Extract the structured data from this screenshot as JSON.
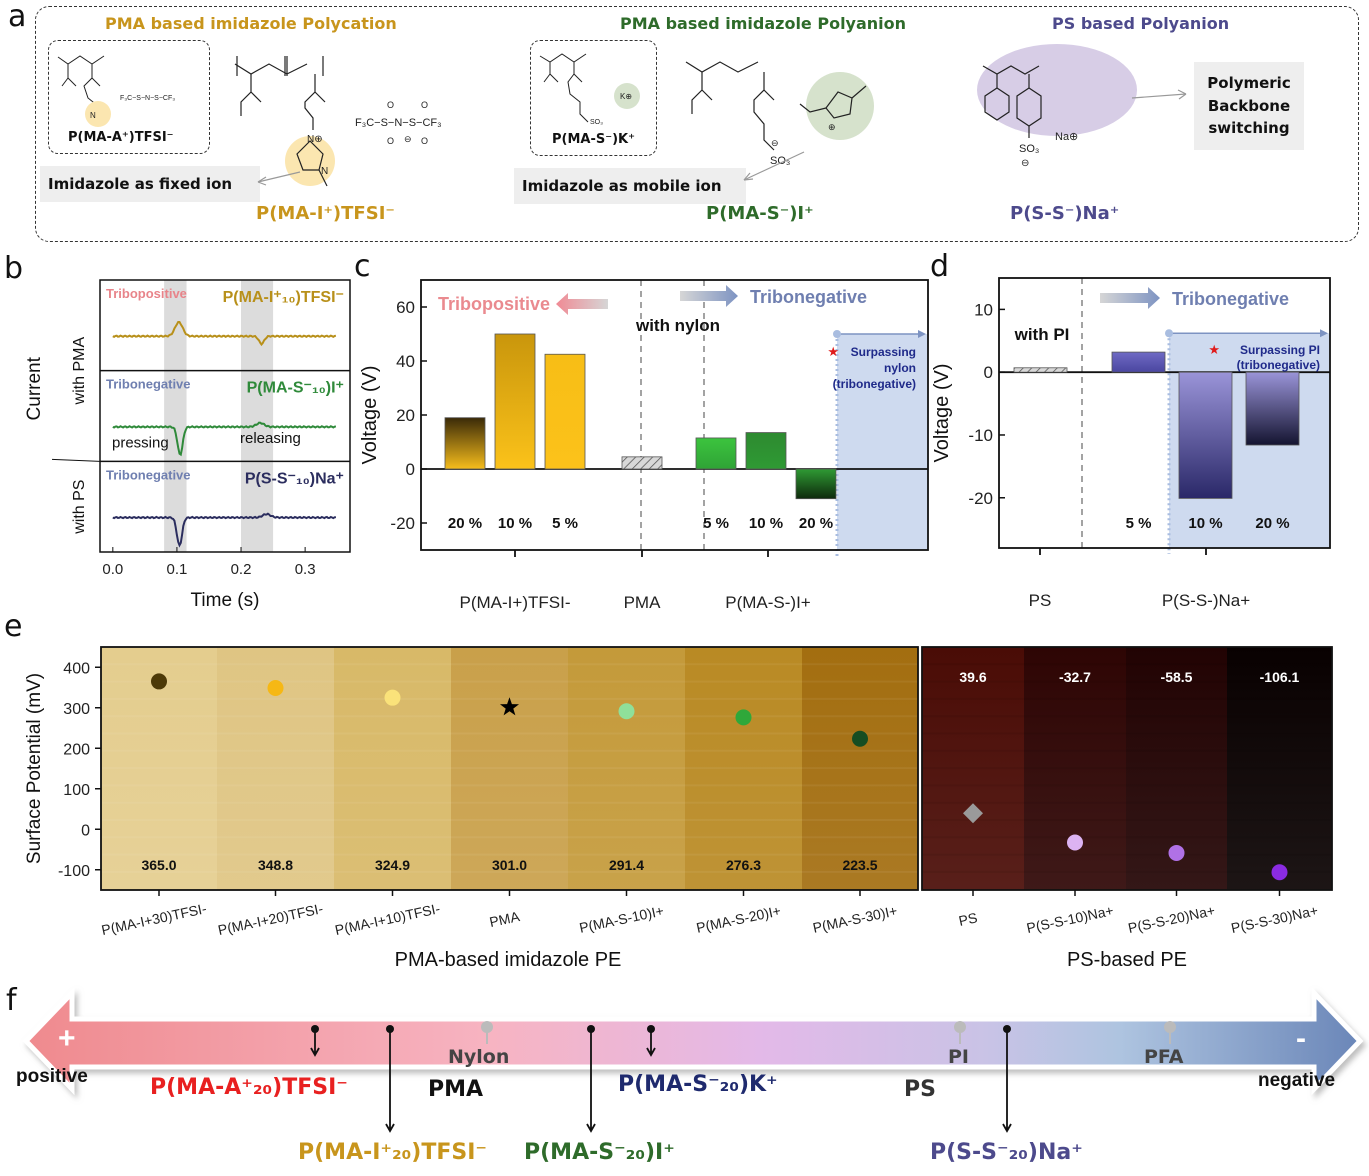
{
  "panel_a": {
    "letter": "a",
    "groups": [
      {
        "title": "PMA based imidazole Polycation",
        "color": "#c8951c",
        "inset_label": "P(MA-A⁺)TFSI⁻",
        "main_label": "P(MA-I⁺)TFSI⁻",
        "note": "Imidazole as fixed ion",
        "anion": "F₃C−S−N−S−CF₃"
      },
      {
        "title": "PMA based imidazole Polyanion",
        "color": "#2e6b2a",
        "inset_label": "P(MA-S⁻)K⁺",
        "main_label": "P(MA-S⁻)I⁺",
        "note": "Imidazole as mobile ion",
        "counter": "K⊕",
        "group": "SO₃"
      },
      {
        "title": "PS based Polyanion",
        "color": "#4d4a8c",
        "main_label": "P(S-S⁻)Na⁺",
        "note": "Polymeric Backbone switching",
        "counter": "Na⊕",
        "group": "SO₃"
      }
    ]
  },
  "chart_data": [
    {
      "id": "b",
      "type": "line",
      "title": "",
      "xlabel": "Time (s)",
      "ylabel": "Current",
      "xlim": [
        -0.02,
        0.37
      ],
      "xticks": [
        "0.0",
        "0.1",
        "0.2",
        "0.3"
      ],
      "shaded_regions": [
        [
          0.08,
          0.115
        ],
        [
          0.2,
          0.25
        ]
      ],
      "group_labels": [
        "with PMA",
        "with PS"
      ],
      "series": [
        {
          "name": "P(MA-I⁺₁₀)TFSI⁻",
          "tag": "Tribopositive",
          "tag_color": "#e8848a",
          "color": "#b8901a",
          "events": [
            {
              "t": 0.103,
              "amp": 1.0
            },
            {
              "t": 0.232,
              "amp": -0.55
            }
          ]
        },
        {
          "name": "P(MA-S⁻₁₀)I⁺",
          "tag": "Tribonegative",
          "tag_color": "#6f7fb0",
          "color": "#2f8a3a",
          "events": [
            {
              "t": 0.105,
              "amp": -1.0
            },
            {
              "t": 0.23,
              "amp": 0.4
            }
          ],
          "annotations": [
            "pressing",
            "releasing"
          ]
        },
        {
          "name": "P(S-S⁻₁₀)Na⁺",
          "tag": "Tribonegative",
          "tag_color": "#6f7fb0",
          "color": "#2b2d5e",
          "events": [
            {
              "t": 0.104,
              "amp": -1.0
            },
            {
              "t": 0.24,
              "amp": 0.35
            }
          ]
        }
      ]
    },
    {
      "id": "c",
      "type": "bar",
      "ylabel": "Voltage (V)",
      "ylim": [
        -30,
        70
      ],
      "yticks": [
        -20,
        0,
        20,
        40,
        60
      ],
      "center_label": "with nylon",
      "arrows": {
        "left": "Tribopositive",
        "right": "Tribonegative"
      },
      "highlight_note": [
        "Surpassing",
        "nylon",
        "(tribonegative)"
      ],
      "groups": [
        "P(MA-I+)TFSI-",
        "PMA",
        "P(MA-S-)I+"
      ],
      "bars": [
        {
          "group": "P(MA-I+)TFSI-",
          "label": "20 %",
          "value": 19,
          "color_top": "#3a2a08",
          "color_bottom": "#f6bd1c"
        },
        {
          "group": "P(MA-I+)TFSI-",
          "label": "10 %",
          "value": 50,
          "color_top": "#c9960c",
          "color_bottom": "#fbc21a"
        },
        {
          "group": "P(MA-I+)TFSI-",
          "label": "5 %",
          "value": 42.5,
          "color_top": "#f7be16",
          "color_bottom": "#fcc21a"
        },
        {
          "group": "PMA",
          "label": "",
          "value": 4.5,
          "hatched": true
        },
        {
          "group": "P(MA-S-)I+",
          "label": "5 %",
          "value": 11.5,
          "color_top": "#3cc43e",
          "color_bottom": "#2fa336"
        },
        {
          "group": "P(MA-S-)I+",
          "label": "10 %",
          "value": 13.5,
          "color_top": "#2d8a30",
          "color_bottom": "#2f9a34"
        },
        {
          "group": "P(MA-S-)I+",
          "label": "20 %",
          "value": -11,
          "color_top": "#2f9a34",
          "color_bottom": "#0e2a0c"
        }
      ]
    },
    {
      "id": "d",
      "type": "bar",
      "ylabel": "Voltage (V)",
      "ylim": [
        -28,
        15
      ],
      "yticks": [
        -20,
        -10,
        0,
        10
      ],
      "center_label": "with PI",
      "arrows": {
        "right": "Tribonegative"
      },
      "highlight_note": [
        "Surpassing PI",
        "(tribonegative)"
      ],
      "groups": [
        "PS",
        "P(S-S-)Na+"
      ],
      "bars": [
        {
          "group": "PS",
          "label": "",
          "value": 0.7,
          "hatched": true
        },
        {
          "group": "P(S-S-)Na+",
          "label": "5 %",
          "value": 3.2,
          "color_top": "#6f6ac4",
          "color_bottom": "#4a46a0"
        },
        {
          "group": "P(S-S-)Na+",
          "label": "10 %",
          "value": -20.1,
          "color_top": "#9a94d8",
          "color_bottom": "#2a2868"
        },
        {
          "group": "P(S-S-)Na+",
          "label": "20 %",
          "value": -11.6,
          "color_top": "#9a94d8",
          "color_bottom": "#141430"
        }
      ]
    },
    {
      "id": "e",
      "type": "scatter",
      "ylabel": "Surface Potential (mV)",
      "ylim": [
        -150,
        450
      ],
      "yticks": [
        -100,
        0,
        100,
        200,
        300,
        400
      ],
      "group_labels": [
        "PMA-based imidazole PE",
        "PS-based PE"
      ],
      "points": [
        {
          "category": "P(MA-I+30)TFSI-",
          "value": 365.0,
          "label": "365.0",
          "marker": "circle",
          "color": "#4d3a08",
          "bg": "#e4cd8e"
        },
        {
          "category": "P(MA-I+20)TFSI-",
          "value": 348.8,
          "label": "348.8",
          "marker": "circle",
          "color": "#f6b814",
          "bg": "#dfc583"
        },
        {
          "category": "P(MA-I+10)TFSI-",
          "value": 324.9,
          "label": "324.9",
          "marker": "circle",
          "color": "#fae27a",
          "bg": "#d8b968"
        },
        {
          "category": "PMA",
          "value": 301.0,
          "label": "301.0",
          "marker": "star",
          "color": "#000000",
          "bg": "#c9a04a"
        },
        {
          "category": "P(MA-S-10)I+",
          "value": 291.4,
          "label": "291.4",
          "marker": "circle",
          "color": "#8fe09a",
          "bg": "#c49a3a"
        },
        {
          "category": "P(MA-S-20)I+",
          "value": 276.3,
          "label": "276.3",
          "marker": "circle",
          "color": "#2fa83a",
          "bg": "#b98a24"
        },
        {
          "category": "P(MA-S-30)I+",
          "value": 223.5,
          "label": "223.5",
          "marker": "circle",
          "color": "#164d22",
          "bg": "#a36e10"
        },
        {
          "category": "PS",
          "value": 39.6,
          "label": "39.6",
          "marker": "diamond",
          "color": "#9a9a9a",
          "bg": "#4a0c06"
        },
        {
          "category": "P(S-S-10)Na+",
          "value": -32.7,
          "label": "-32.7",
          "marker": "circle",
          "color": "#dcb3f2",
          "bg": "#2e0504"
        },
        {
          "category": "P(S-S-20)Na+",
          "value": -58.5,
          "label": "-58.5",
          "marker": "circle",
          "color": "#b071e6",
          "bg": "#220303"
        },
        {
          "category": "P(S-S-30)Na+",
          "value": -106.1,
          "label": "-106.1",
          "marker": "circle",
          "color": "#8a2be2",
          "bg": "#090101"
        }
      ]
    }
  ],
  "panel_f": {
    "letter": "f",
    "positive_label": "positive",
    "negative_label": "negative",
    "plus": "+",
    "minus": "-",
    "references": [
      "Nylon",
      "PI",
      "PFA"
    ],
    "materials": [
      {
        "text": "P(MA-A⁺₂₀)TFSI⁻",
        "color": "#e82020"
      },
      {
        "text": "PMA",
        "color": "#111111"
      },
      {
        "text": "P(MA-I⁺₂₀)TFSI⁻",
        "color": "#c8951c"
      },
      {
        "text": "P(MA-S⁻₂₀)I⁺",
        "color": "#2e6b2a"
      },
      {
        "text": "P(MA-S⁻₂₀)K⁺",
        "color": "#1f2a6e"
      },
      {
        "text": "PS",
        "color": "#333333"
      },
      {
        "text": "P(S-S⁻₂₀)Na⁺",
        "color": "#4d4a8c"
      }
    ]
  },
  "labels": {
    "b": "b",
    "c": "c",
    "d": "d",
    "e": "e"
  }
}
